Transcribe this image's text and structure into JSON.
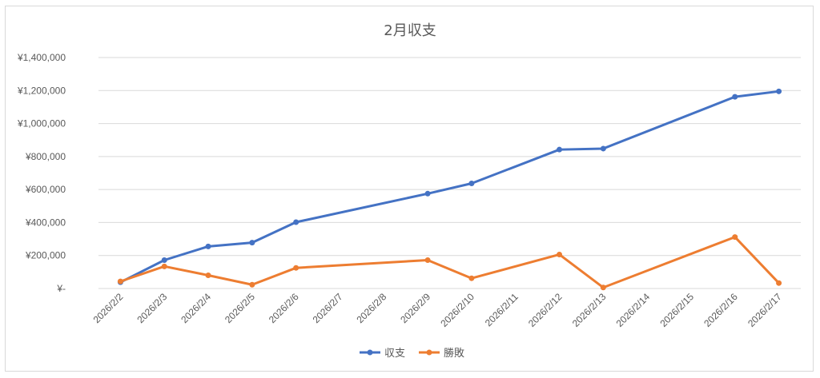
{
  "chart_data": {
    "type": "line",
    "title": "2月収支",
    "xlabel": "",
    "ylabel": "",
    "categories": [
      "2026/2/2",
      "2026/2/3",
      "2026/2/4",
      "2026/2/5",
      "2026/2/6",
      "2026/2/7",
      "2026/2/8",
      "2026/2/9",
      "2026/2/10",
      "2026/2/11",
      "2026/2/12",
      "2026/2/13",
      "2026/2/14",
      "2026/2/15",
      "2026/2/16",
      "2026/2/17"
    ],
    "ylim": [
      0,
      1400000
    ],
    "yticks": [
      {
        "value": 0,
        "label": "¥-"
      },
      {
        "value": 200000,
        "label": "¥200,000"
      },
      {
        "value": 400000,
        "label": "¥400,000"
      },
      {
        "value": 600000,
        "label": "¥600,000"
      },
      {
        "value": 800000,
        "label": "¥800,000"
      },
      {
        "value": 1000000,
        "label": "¥1,000,000"
      },
      {
        "value": 1200000,
        "label": "¥1,200,000"
      },
      {
        "value": 1400000,
        "label": "¥1,400,000"
      }
    ],
    "grid": true,
    "legend_position": "bottom",
    "series": [
      {
        "name": "収支",
        "color": "#4472c4",
        "values": [
          38000,
          172000,
          255000,
          278000,
          402000,
          null,
          null,
          575000,
          637000,
          null,
          842000,
          848000,
          null,
          null,
          1162000,
          1195000
        ]
      },
      {
        "name": "勝敗",
        "color": "#ed7d31",
        "values": [
          43000,
          134000,
          80000,
          23000,
          125000,
          null,
          null,
          172000,
          62000,
          null,
          206000,
          6000,
          null,
          null,
          312000,
          33000
        ]
      }
    ]
  }
}
